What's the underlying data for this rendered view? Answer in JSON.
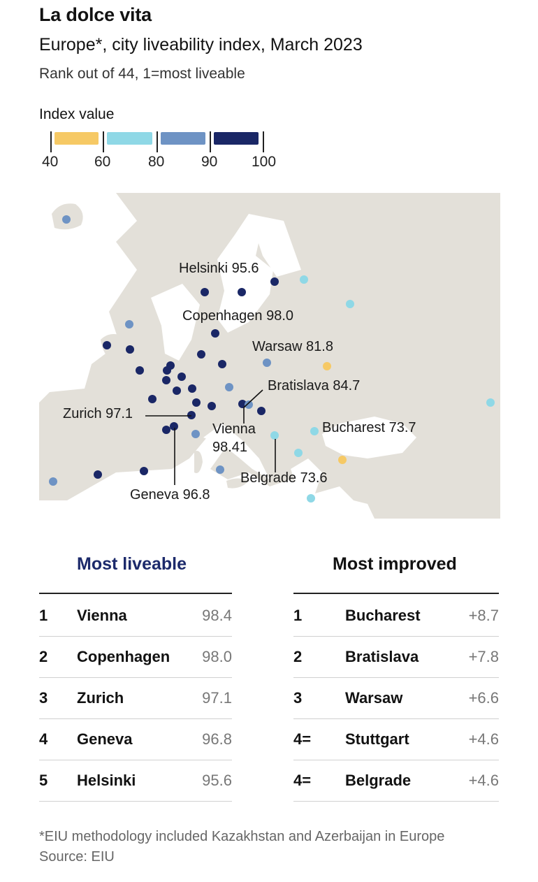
{
  "title": "La dolce vita",
  "subtitle": "Europe*, city liveability index, March 2023",
  "description": "Rank out of 44, 1=most liveable",
  "legend": {
    "label": "Index value",
    "bins": [
      {
        "from": 40,
        "to": 60,
        "color": "#f6c965"
      },
      {
        "from": 60,
        "to": 80,
        "color": "#8fd8e6"
      },
      {
        "from": 80,
        "to": 90,
        "color": "#6e93c4"
      },
      {
        "from": 90,
        "to": 100,
        "color": "#1a2766"
      }
    ],
    "ticks": [
      "40",
      "60",
      "80",
      "90",
      "100"
    ]
  },
  "map": {
    "land_color": "#e3e0d9",
    "sea_color": "#ffffff",
    "labels": {
      "helsinki": "Helsinki 95.6",
      "copenhagen": "Copenhagen 98.0",
      "warsaw": "Warsaw 81.8",
      "bratislava": "Bratislava 84.7",
      "zurich": "Zurich 97.1",
      "vienna_1": "Vienna",
      "vienna_2": "98.41",
      "bucharest": "Bucharest 73.7",
      "belgrade": "Belgrade 73.6",
      "geneva": "Geneva 96.8"
    }
  },
  "tables": {
    "most_liveable": {
      "heading": "Most liveable",
      "rows": [
        {
          "rank": "1",
          "city": "Vienna",
          "value": "98.4"
        },
        {
          "rank": "2",
          "city": "Copenhagen",
          "value": "98.0"
        },
        {
          "rank": "3",
          "city": "Zurich",
          "value": "97.1"
        },
        {
          "rank": "4",
          "city": "Geneva",
          "value": "96.8"
        },
        {
          "rank": "5",
          "city": "Helsinki",
          "value": "95.6"
        }
      ]
    },
    "most_improved": {
      "heading": "Most improved",
      "rows": [
        {
          "rank": "1",
          "city": "Bucharest",
          "value": "+8.7"
        },
        {
          "rank": "2",
          "city": "Bratislava",
          "value": "+7.8"
        },
        {
          "rank": "3",
          "city": "Warsaw",
          "value": "+6.6"
        },
        {
          "rank": "4=",
          "city": "Stuttgart",
          "value": "+4.6"
        },
        {
          "rank": "4=",
          "city": "Belgrade",
          "value": "+4.6"
        }
      ]
    }
  },
  "footnote": {
    "line1": "*EIU methodology included Kazakhstan and Azerbaijan in Europe",
    "line2": "Source: EIU"
  }
}
